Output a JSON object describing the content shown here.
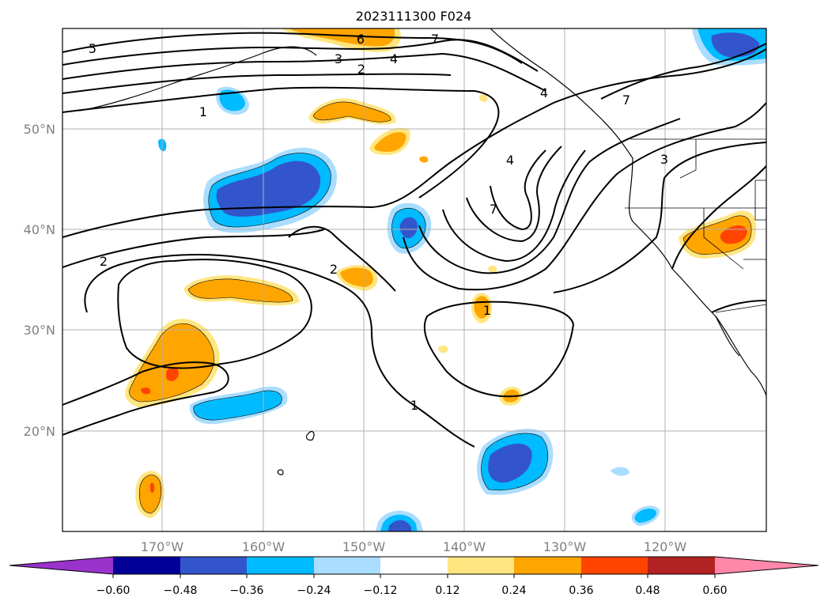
{
  "title": "2023111300 F024",
  "map": {
    "lon_range": [
      -180,
      -110
    ],
    "lat_range": [
      10,
      60
    ],
    "lat_labels": [
      "50°N",
      "40°N",
      "30°N",
      "20°N"
    ],
    "lon_labels": [
      "170°W",
      "160°W",
      "150°W",
      "140°W",
      "130°W",
      "120°W"
    ],
    "gridlines": true,
    "contour_labels": [
      "5",
      "6",
      "7",
      "3",
      "4",
      "2",
      "1",
      "7",
      "4",
      "7",
      "3",
      "2",
      "2",
      "1",
      "1",
      "4"
    ]
  },
  "colorbar": {
    "ticks": [
      "−0.60",
      "−0.48",
      "−0.36",
      "−0.24",
      "−0.12",
      "0.12",
      "0.24",
      "0.36",
      "0.48",
      "0.60"
    ],
    "colors": [
      "#9933cc",
      "#000099",
      "#3355cc",
      "#00bbff",
      "#aaddff",
      "#ffffff",
      "#ffe680",
      "#ffa500",
      "#ff4400",
      "#b22222",
      "#ff88aa"
    ],
    "extend": "both"
  }
}
